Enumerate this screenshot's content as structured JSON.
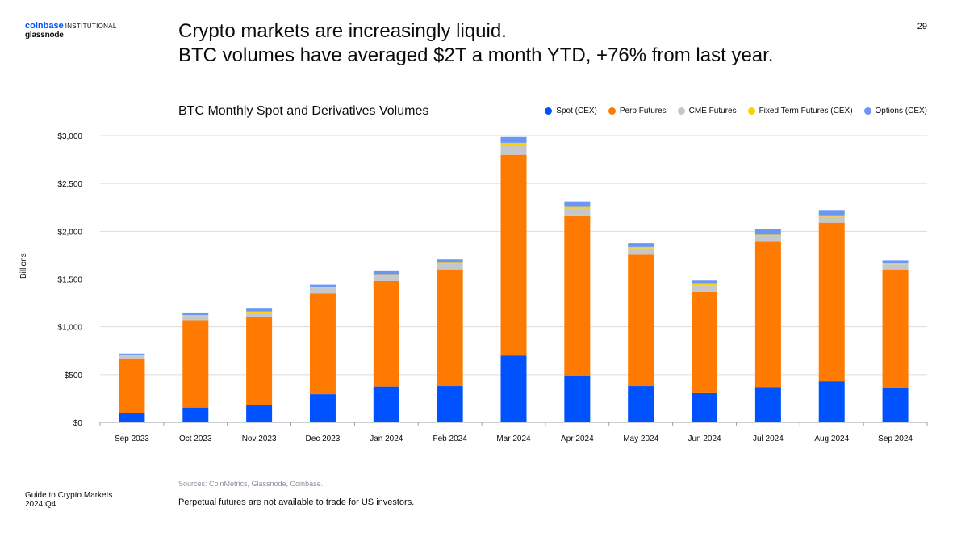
{
  "brand": {
    "coinbase": "coinbase",
    "institutional": "INSTITUTIONAL",
    "glassnode": "glassnode"
  },
  "headline": {
    "line1": "Crypto markets are increasingly liquid.",
    "line2": "BTC volumes have averaged $2T a month YTD, +76% from last year."
  },
  "page_number": "29",
  "footer": {
    "line1": "Guide to Crypto Markets",
    "line2": "2024 Q4"
  },
  "sources": "Sources: CoinMetrics, Glassnode, Coinbase.",
  "note": "Perpetual futures are not available to trade for US investors.",
  "chart_data": {
    "type": "bar",
    "stacked": true,
    "title": "BTC Monthly Spot and Derivatives Volumes",
    "ylabel": "Billions",
    "xlabel": "",
    "ylim": [
      0,
      3000
    ],
    "yticks": [
      0,
      500,
      1000,
      1500,
      2000,
      2500,
      3000
    ],
    "ytick_labels": [
      "$0",
      "$500",
      "$1,000",
      "$1,500",
      "$2,000",
      "$2,500",
      "$3,000"
    ],
    "grid": true,
    "legend_position": "top-right",
    "categories": [
      "Sep 2023",
      "Oct 2023",
      "Nov 2023",
      "Dec 2023",
      "Jan 2024",
      "Feb 2024",
      "Mar 2024",
      "Apr 2024",
      "May 2024",
      "Jun 2024",
      "Jul 2024",
      "Aug 2024",
      "Sep 2024"
    ],
    "series": [
      {
        "name": "Spot (CEX)",
        "color": "#0052ff",
        "values": [
          100,
          155,
          185,
          295,
          375,
          380,
          700,
          490,
          380,
          305,
          370,
          430,
          360
        ]
      },
      {
        "name": "Perp Futures",
        "color": "#ff7a00",
        "values": [
          570,
          915,
          915,
          1055,
          1105,
          1220,
          2100,
          1675,
          1375,
          1065,
          1520,
          1660,
          1240
        ]
      },
      {
        "name": "CME Futures",
        "color": "#c4c8cc",
        "values": [
          30,
          45,
          50,
          55,
          55,
          60,
          90,
          70,
          65,
          65,
          65,
          60,
          55
        ]
      },
      {
        "name": "Fixed Term Futures (CEX)",
        "color": "#ffd000",
        "values": [
          5,
          8,
          10,
          10,
          15,
          10,
          35,
          25,
          15,
          15,
          10,
          15,
          10
        ]
      },
      {
        "name": "Options (CEX)",
        "color": "#6b96f5",
        "values": [
          15,
          27,
          30,
          25,
          40,
          35,
          60,
          50,
          40,
          35,
          55,
          55,
          30
        ]
      }
    ]
  }
}
